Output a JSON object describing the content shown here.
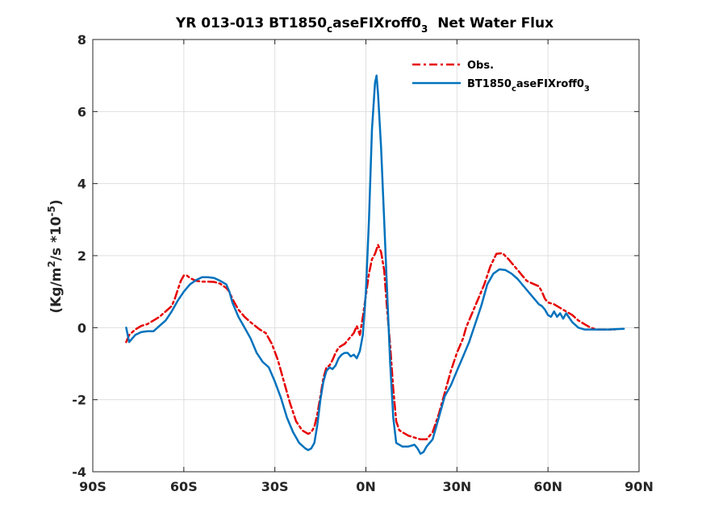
{
  "chart_data": {
    "type": "line",
    "title": {
      "prefix": "YR 013-013 BT1850",
      "sub1": "c",
      "mid": "aseFIXroff0",
      "sub2": "3",
      "suffix": "  Net Water Flux"
    },
    "ylabel": {
      "p1": "(Kg/m",
      "sup1": "2",
      "p2": "/s *10",
      "sup2": "-5",
      "p3": ")"
    },
    "xlim": [
      -90,
      90
    ],
    "ylim": [
      -4,
      8
    ],
    "x_ticks": [
      {
        "value": -90,
        "label": "90S"
      },
      {
        "value": -60,
        "label": "60S"
      },
      {
        "value": -30,
        "label": "30S"
      },
      {
        "value": 0,
        "label": "0N"
      },
      {
        "value": 30,
        "label": "30N"
      },
      {
        "value": 60,
        "label": "60N"
      },
      {
        "value": 90,
        "label": "90N"
      }
    ],
    "y_ticks": [
      {
        "value": -4,
        "label": "-4"
      },
      {
        "value": -2,
        "label": "-2"
      },
      {
        "value": 0,
        "label": "0"
      },
      {
        "value": 2,
        "label": "2"
      },
      {
        "value": 4,
        "label": "4"
      },
      {
        "value": 6,
        "label": "6"
      },
      {
        "value": 8,
        "label": "8"
      }
    ],
    "grid": true,
    "legend_position": "top-right",
    "legend": {
      "obs": "Obs.",
      "model_prefix": "BT1850",
      "model_sub1": "c",
      "model_mid": "aseFIXroff0",
      "model_sub2": "3"
    },
    "series": [
      {
        "name": "Obs.",
        "color": "#e60000",
        "style": "dash-dot",
        "points": [
          [
            -79,
            -0.4
          ],
          [
            -78,
            -0.2
          ],
          [
            -76,
            -0.05
          ],
          [
            -74,
            0.05
          ],
          [
            -72,
            0.1
          ],
          [
            -70,
            0.2
          ],
          [
            -68,
            0.3
          ],
          [
            -66,
            0.45
          ],
          [
            -64,
            0.6
          ],
          [
            -63,
            0.8
          ],
          [
            -62,
            1.05
          ],
          [
            -61,
            1.3
          ],
          [
            -60,
            1.45
          ],
          [
            -59,
            1.45
          ],
          [
            -58,
            1.38
          ],
          [
            -56,
            1.3
          ],
          [
            -54,
            1.28
          ],
          [
            -52,
            1.28
          ],
          [
            -50,
            1.27
          ],
          [
            -48,
            1.22
          ],
          [
            -46,
            1.1
          ],
          [
            -45,
            1.0
          ],
          [
            -44,
            0.8
          ],
          [
            -42,
            0.5
          ],
          [
            -40,
            0.3
          ],
          [
            -38,
            0.15
          ],
          [
            -35,
            -0.05
          ],
          [
            -33,
            -0.15
          ],
          [
            -31,
            -0.45
          ],
          [
            -29,
            -0.9
          ],
          [
            -27,
            -1.5
          ],
          [
            -25,
            -2.1
          ],
          [
            -23,
            -2.6
          ],
          [
            -21,
            -2.85
          ],
          [
            -19,
            -2.95
          ],
          [
            -18,
            -2.9
          ],
          [
            -17,
            -2.75
          ],
          [
            -16,
            -2.4
          ],
          [
            -15,
            -1.9
          ],
          [
            -14,
            -1.4
          ],
          [
            -13,
            -1.1
          ],
          [
            -12,
            -1.05
          ],
          [
            -11,
            -0.9
          ],
          [
            -10,
            -0.7
          ],
          [
            -9,
            -0.55
          ],
          [
            -8,
            -0.5
          ],
          [
            -7,
            -0.45
          ],
          [
            -6,
            -0.35
          ],
          [
            -5,
            -0.25
          ],
          [
            -4,
            -0.15
          ],
          [
            -3,
            0.05
          ],
          [
            -2,
            -0.2
          ],
          [
            -1,
            0.3
          ],
          [
            0,
            0.9
          ],
          [
            1,
            1.5
          ],
          [
            2,
            1.9
          ],
          [
            3,
            2.05
          ],
          [
            4,
            2.3
          ],
          [
            5,
            2.1
          ],
          [
            6,
            1.6
          ],
          [
            7,
            0.5
          ],
          [
            8,
            -0.5
          ],
          [
            9,
            -1.7
          ],
          [
            10,
            -2.6
          ],
          [
            11,
            -2.85
          ],
          [
            12,
            -2.9
          ],
          [
            13,
            -2.95
          ],
          [
            14,
            -3.0
          ],
          [
            16,
            -3.05
          ],
          [
            18,
            -3.1
          ],
          [
            20,
            -3.1
          ],
          [
            22,
            -2.9
          ],
          [
            24,
            -2.4
          ],
          [
            26,
            -1.8
          ],
          [
            28,
            -1.2
          ],
          [
            30,
            -0.7
          ],
          [
            32,
            -0.3
          ],
          [
            33,
            0.0
          ],
          [
            35,
            0.4
          ],
          [
            37,
            0.8
          ],
          [
            39,
            1.2
          ],
          [
            41,
            1.7
          ],
          [
            43,
            2.05
          ],
          [
            45,
            2.07
          ],
          [
            47,
            1.9
          ],
          [
            49,
            1.7
          ],
          [
            51,
            1.5
          ],
          [
            53,
            1.3
          ],
          [
            55,
            1.22
          ],
          [
            57,
            1.15
          ],
          [
            58,
            1.0
          ],
          [
            59,
            0.8
          ],
          [
            60,
            0.7
          ],
          [
            62,
            0.65
          ],
          [
            64,
            0.55
          ],
          [
            66,
            0.45
          ],
          [
            68,
            0.35
          ],
          [
            70,
            0.2
          ],
          [
            72,
            0.1
          ],
          [
            74,
            0.0
          ],
          [
            76,
            -0.05
          ],
          [
            78,
            -0.05
          ],
          [
            80,
            -0.05
          ],
          [
            82,
            -0.05
          ]
        ]
      },
      {
        "name": "BT1850caseFIXroff03",
        "color": "#0072bd",
        "style": "solid",
        "points": [
          [
            -79,
            0.0
          ],
          [
            -78,
            -0.4
          ],
          [
            -76,
            -0.2
          ],
          [
            -74,
            -0.12
          ],
          [
            -72,
            -0.1
          ],
          [
            -70,
            -0.1
          ],
          [
            -68,
            0.05
          ],
          [
            -66,
            0.2
          ],
          [
            -64,
            0.45
          ],
          [
            -62,
            0.75
          ],
          [
            -60,
            1.0
          ],
          [
            -58,
            1.2
          ],
          [
            -56,
            1.32
          ],
          [
            -54,
            1.4
          ],
          [
            -52,
            1.4
          ],
          [
            -50,
            1.38
          ],
          [
            -48,
            1.3
          ],
          [
            -46,
            1.2
          ],
          [
            -45,
            1.0
          ],
          [
            -44,
            0.7
          ],
          [
            -42,
            0.3
          ],
          [
            -40,
            0.0
          ],
          [
            -38,
            -0.3
          ],
          [
            -36,
            -0.7
          ],
          [
            -34,
            -0.95
          ],
          [
            -32,
            -1.1
          ],
          [
            -30,
            -1.5
          ],
          [
            -28,
            -1.95
          ],
          [
            -26,
            -2.5
          ],
          [
            -24,
            -2.9
          ],
          [
            -22,
            -3.2
          ],
          [
            -20,
            -3.35
          ],
          [
            -19,
            -3.4
          ],
          [
            -18,
            -3.35
          ],
          [
            -17,
            -3.2
          ],
          [
            -16,
            -2.7
          ],
          [
            -15,
            -2.0
          ],
          [
            -14,
            -1.5
          ],
          [
            -13,
            -1.2
          ],
          [
            -12,
            -1.1
          ],
          [
            -11,
            -1.15
          ],
          [
            -10,
            -1.05
          ],
          [
            -9,
            -0.85
          ],
          [
            -8,
            -0.75
          ],
          [
            -7,
            -0.7
          ],
          [
            -6,
            -0.7
          ],
          [
            -5,
            -0.8
          ],
          [
            -4,
            -0.75
          ],
          [
            -3,
            -0.85
          ],
          [
            -2,
            -0.65
          ],
          [
            -1,
            -0.2
          ],
          [
            0,
            1.0
          ],
          [
            1,
            3.0
          ],
          [
            2,
            5.5
          ],
          [
            3,
            6.8
          ],
          [
            3.5,
            7.0
          ],
          [
            4,
            6.5
          ],
          [
            5,
            5.0
          ],
          [
            6,
            3.0
          ],
          [
            7,
            1.0
          ],
          [
            8,
            -1.0
          ],
          [
            9,
            -2.5
          ],
          [
            10,
            -3.2
          ],
          [
            12,
            -3.3
          ],
          [
            14,
            -3.3
          ],
          [
            16,
            -3.25
          ],
          [
            17,
            -3.35
          ],
          [
            18,
            -3.5
          ],
          [
            19,
            -3.45
          ],
          [
            20,
            -3.3
          ],
          [
            22,
            -3.1
          ],
          [
            24,
            -2.5
          ],
          [
            26,
            -1.9
          ],
          [
            28,
            -1.6
          ],
          [
            30,
            -1.2
          ],
          [
            32,
            -0.8
          ],
          [
            34,
            -0.4
          ],
          [
            36,
            0.1
          ],
          [
            38,
            0.6
          ],
          [
            40,
            1.2
          ],
          [
            42,
            1.5
          ],
          [
            44,
            1.62
          ],
          [
            46,
            1.6
          ],
          [
            48,
            1.5
          ],
          [
            50,
            1.35
          ],
          [
            52,
            1.15
          ],
          [
            54,
            0.95
          ],
          [
            56,
            0.75
          ],
          [
            57,
            0.65
          ],
          [
            58,
            0.6
          ],
          [
            59,
            0.5
          ],
          [
            60,
            0.35
          ],
          [
            61,
            0.3
          ],
          [
            62,
            0.45
          ],
          [
            63,
            0.3
          ],
          [
            64,
            0.4
          ],
          [
            65,
            0.25
          ],
          [
            66,
            0.4
          ],
          [
            68,
            0.15
          ],
          [
            70,
            0.0
          ],
          [
            72,
            -0.05
          ],
          [
            76,
            -0.05
          ],
          [
            80,
            -0.05
          ],
          [
            85,
            -0.03
          ]
        ]
      }
    ]
  }
}
